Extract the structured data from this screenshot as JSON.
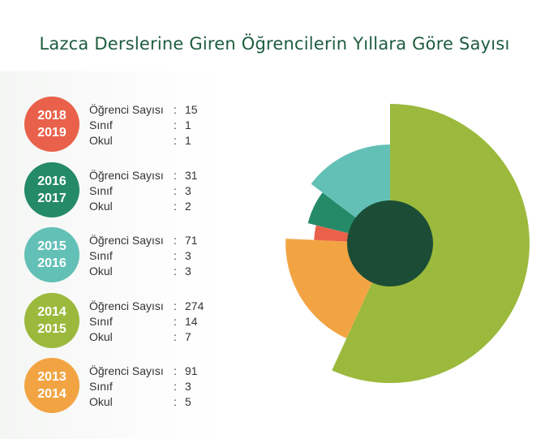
{
  "title": "Lazca Derslerine Giren Öğrencilerin Yıllara Göre Sayısı",
  "labels": {
    "students": "Öğrenci Sayısı",
    "classes": "Sınıf",
    "schools": "Okul",
    "colon": ":"
  },
  "chart_data": {
    "type": "pie",
    "subtype": "variable-radius pie (rose) with center hole",
    "title": "Lazca Derslerine Giren Öğrencilerin Yıllara Göre Sayısı",
    "categories": [
      "2018\n2019",
      "2016\n2017",
      "2015\n2016",
      "2014\n2015",
      "2013\n2014"
    ],
    "series": [
      {
        "name": "Öğrenci Sayısı",
        "values": [
          15,
          31,
          71,
          274,
          91
        ]
      },
      {
        "name": "Sınıf",
        "values": [
          1,
          3,
          3,
          14,
          3
        ]
      },
      {
        "name": "Okul",
        "values": [
          1,
          2,
          3,
          7,
          5
        ]
      }
    ],
    "center_hole_color": "#1b4d36",
    "legend_placement": "left"
  },
  "years": [
    {
      "year_line1": "2018",
      "year_line2": "2019",
      "students": "15",
      "classes": "1",
      "schools": "1",
      "color": "#e9614a"
    },
    {
      "year_line1": "2016",
      "year_line2": "2017",
      "students": "31",
      "classes": "3",
      "schools": "2",
      "color": "#248a67"
    },
    {
      "year_line1": "2015",
      "year_line2": "2016",
      "students": "71",
      "classes": "3",
      "schools": "3",
      "color": "#63c0b6"
    },
    {
      "year_line1": "2014",
      "year_line2": "2015",
      "students": "274",
      "classes": "14",
      "schools": "7",
      "color": "#9bb93c"
    },
    {
      "year_line1": "2013",
      "year_line2": "2014",
      "students": "91",
      "classes": "3",
      "schools": "5",
      "color": "#f2a443"
    }
  ]
}
